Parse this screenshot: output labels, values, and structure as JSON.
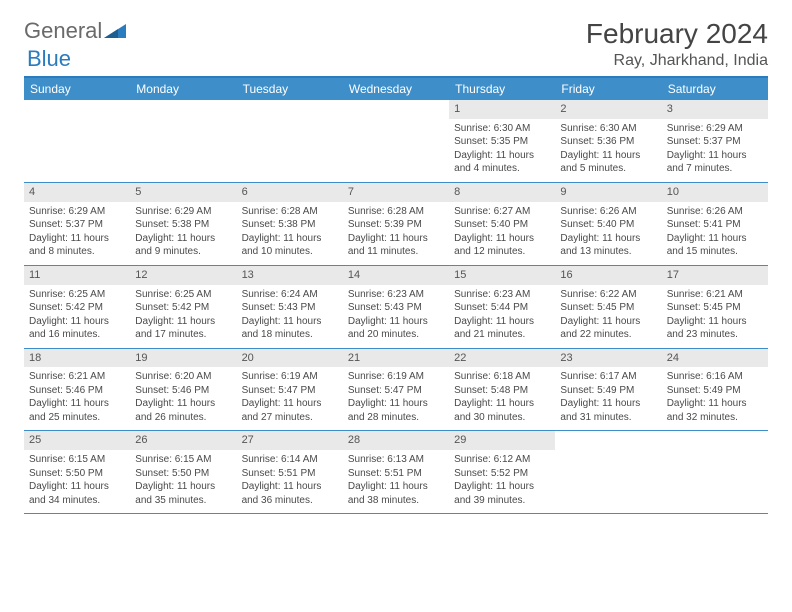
{
  "logo": {
    "text1": "General",
    "text2": "Blue"
  },
  "title": "February 2024",
  "location": "Ray, Jharkhand, India",
  "colors": {
    "accent": "#3d8ec9",
    "header_bg": "#3d8ec9",
    "daynum_bg": "#e9e9e9",
    "text": "#4a4a4a"
  },
  "dayHeaders": [
    "Sunday",
    "Monday",
    "Tuesday",
    "Wednesday",
    "Thursday",
    "Friday",
    "Saturday"
  ],
  "weeks": [
    [
      {
        "empty": true
      },
      {
        "empty": true
      },
      {
        "empty": true
      },
      {
        "empty": true
      },
      {
        "day": "1",
        "sunrise": "Sunrise: 6:30 AM",
        "sunset": "Sunset: 5:35 PM",
        "daylight": "Daylight: 11 hours and 4 minutes."
      },
      {
        "day": "2",
        "sunrise": "Sunrise: 6:30 AM",
        "sunset": "Sunset: 5:36 PM",
        "daylight": "Daylight: 11 hours and 5 minutes."
      },
      {
        "day": "3",
        "sunrise": "Sunrise: 6:29 AM",
        "sunset": "Sunset: 5:37 PM",
        "daylight": "Daylight: 11 hours and 7 minutes."
      }
    ],
    [
      {
        "day": "4",
        "sunrise": "Sunrise: 6:29 AM",
        "sunset": "Sunset: 5:37 PM",
        "daylight": "Daylight: 11 hours and 8 minutes."
      },
      {
        "day": "5",
        "sunrise": "Sunrise: 6:29 AM",
        "sunset": "Sunset: 5:38 PM",
        "daylight": "Daylight: 11 hours and 9 minutes."
      },
      {
        "day": "6",
        "sunrise": "Sunrise: 6:28 AM",
        "sunset": "Sunset: 5:38 PM",
        "daylight": "Daylight: 11 hours and 10 minutes."
      },
      {
        "day": "7",
        "sunrise": "Sunrise: 6:28 AM",
        "sunset": "Sunset: 5:39 PM",
        "daylight": "Daylight: 11 hours and 11 minutes."
      },
      {
        "day": "8",
        "sunrise": "Sunrise: 6:27 AM",
        "sunset": "Sunset: 5:40 PM",
        "daylight": "Daylight: 11 hours and 12 minutes."
      },
      {
        "day": "9",
        "sunrise": "Sunrise: 6:26 AM",
        "sunset": "Sunset: 5:40 PM",
        "daylight": "Daylight: 11 hours and 13 minutes."
      },
      {
        "day": "10",
        "sunrise": "Sunrise: 6:26 AM",
        "sunset": "Sunset: 5:41 PM",
        "daylight": "Daylight: 11 hours and 15 minutes."
      }
    ],
    [
      {
        "day": "11",
        "sunrise": "Sunrise: 6:25 AM",
        "sunset": "Sunset: 5:42 PM",
        "daylight": "Daylight: 11 hours and 16 minutes."
      },
      {
        "day": "12",
        "sunrise": "Sunrise: 6:25 AM",
        "sunset": "Sunset: 5:42 PM",
        "daylight": "Daylight: 11 hours and 17 minutes."
      },
      {
        "day": "13",
        "sunrise": "Sunrise: 6:24 AM",
        "sunset": "Sunset: 5:43 PM",
        "daylight": "Daylight: 11 hours and 18 minutes."
      },
      {
        "day": "14",
        "sunrise": "Sunrise: 6:23 AM",
        "sunset": "Sunset: 5:43 PM",
        "daylight": "Daylight: 11 hours and 20 minutes."
      },
      {
        "day": "15",
        "sunrise": "Sunrise: 6:23 AM",
        "sunset": "Sunset: 5:44 PM",
        "daylight": "Daylight: 11 hours and 21 minutes."
      },
      {
        "day": "16",
        "sunrise": "Sunrise: 6:22 AM",
        "sunset": "Sunset: 5:45 PM",
        "daylight": "Daylight: 11 hours and 22 minutes."
      },
      {
        "day": "17",
        "sunrise": "Sunrise: 6:21 AM",
        "sunset": "Sunset: 5:45 PM",
        "daylight": "Daylight: 11 hours and 23 minutes."
      }
    ],
    [
      {
        "day": "18",
        "sunrise": "Sunrise: 6:21 AM",
        "sunset": "Sunset: 5:46 PM",
        "daylight": "Daylight: 11 hours and 25 minutes."
      },
      {
        "day": "19",
        "sunrise": "Sunrise: 6:20 AM",
        "sunset": "Sunset: 5:46 PM",
        "daylight": "Daylight: 11 hours and 26 minutes."
      },
      {
        "day": "20",
        "sunrise": "Sunrise: 6:19 AM",
        "sunset": "Sunset: 5:47 PM",
        "daylight": "Daylight: 11 hours and 27 minutes."
      },
      {
        "day": "21",
        "sunrise": "Sunrise: 6:19 AM",
        "sunset": "Sunset: 5:47 PM",
        "daylight": "Daylight: 11 hours and 28 minutes."
      },
      {
        "day": "22",
        "sunrise": "Sunrise: 6:18 AM",
        "sunset": "Sunset: 5:48 PM",
        "daylight": "Daylight: 11 hours and 30 minutes."
      },
      {
        "day": "23",
        "sunrise": "Sunrise: 6:17 AM",
        "sunset": "Sunset: 5:49 PM",
        "daylight": "Daylight: 11 hours and 31 minutes."
      },
      {
        "day": "24",
        "sunrise": "Sunrise: 6:16 AM",
        "sunset": "Sunset: 5:49 PM",
        "daylight": "Daylight: 11 hours and 32 minutes."
      }
    ],
    [
      {
        "day": "25",
        "sunrise": "Sunrise: 6:15 AM",
        "sunset": "Sunset: 5:50 PM",
        "daylight": "Daylight: 11 hours and 34 minutes."
      },
      {
        "day": "26",
        "sunrise": "Sunrise: 6:15 AM",
        "sunset": "Sunset: 5:50 PM",
        "daylight": "Daylight: 11 hours and 35 minutes."
      },
      {
        "day": "27",
        "sunrise": "Sunrise: 6:14 AM",
        "sunset": "Sunset: 5:51 PM",
        "daylight": "Daylight: 11 hours and 36 minutes."
      },
      {
        "day": "28",
        "sunrise": "Sunrise: 6:13 AM",
        "sunset": "Sunset: 5:51 PM",
        "daylight": "Daylight: 11 hours and 38 minutes."
      },
      {
        "day": "29",
        "sunrise": "Sunrise: 6:12 AM",
        "sunset": "Sunset: 5:52 PM",
        "daylight": "Daylight: 11 hours and 39 minutes."
      },
      {
        "empty": true
      },
      {
        "empty": true
      }
    ]
  ]
}
